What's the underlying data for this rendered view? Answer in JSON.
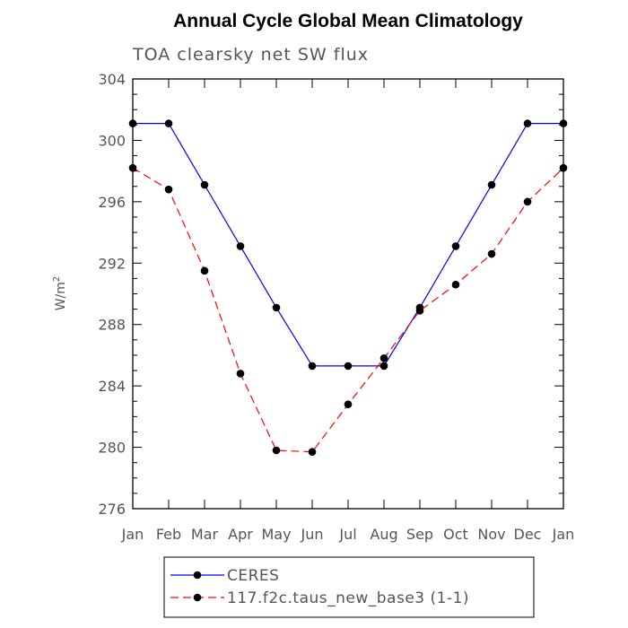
{
  "chart_data": {
    "type": "line",
    "title": "Annual Cycle Global Mean Climatology",
    "subtitle": "TOA clearsky net SW flux",
    "xlabel": "",
    "ylabel": "W/m",
    "ylabel_superscript": "2",
    "categories": [
      "Jan",
      "Feb",
      "Mar",
      "Apr",
      "May",
      "Jun",
      "Jul",
      "Aug",
      "Sep",
      "Oct",
      "Nov",
      "Dec",
      "Jan"
    ],
    "ylim": [
      276,
      304
    ],
    "yticks": [
      "276",
      "280",
      "284",
      "288",
      "292",
      "296",
      "300",
      "304"
    ],
    "grid": false,
    "legend_position": "bottom",
    "series": [
      {
        "name": "CERES",
        "color": "#0000ff",
        "line_style": "solid",
        "marker": "filled-circle",
        "values": [
          301.1,
          301.1,
          297.1,
          293.1,
          289.1,
          285.3,
          285.3,
          285.3,
          289.1,
          293.1,
          297.1,
          301.1,
          301.1
        ]
      },
      {
        "name": "117.f2c.taus_new_base3 (1-1)",
        "color": "#ff0000",
        "line_style": "dashed",
        "marker": "filled-circle",
        "values": [
          298.2,
          296.8,
          291.5,
          284.8,
          279.8,
          279.7,
          282.8,
          285.8,
          288.9,
          290.6,
          292.6,
          296.0,
          298.2
        ]
      }
    ]
  }
}
